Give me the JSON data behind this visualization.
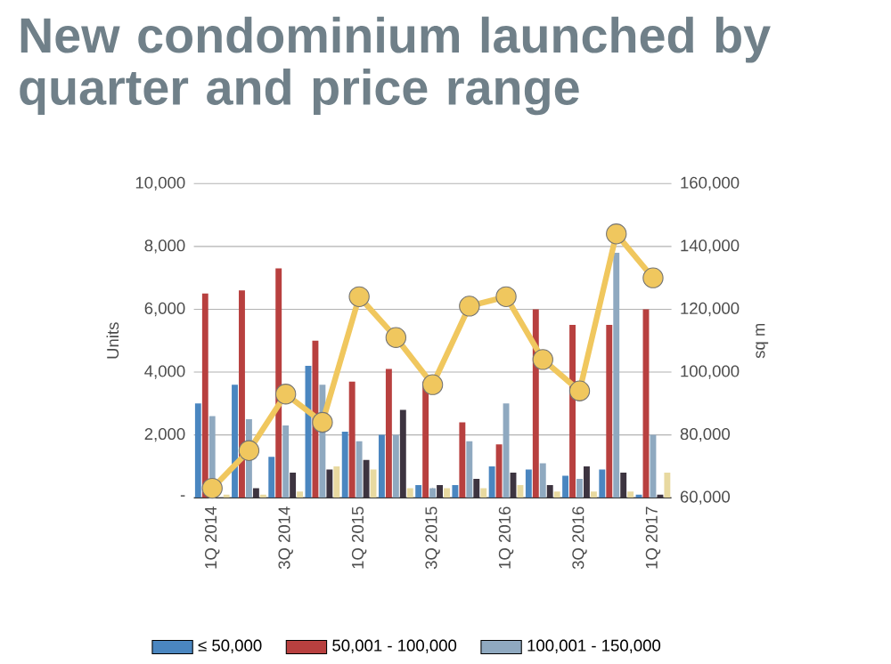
{
  "chart_data": {
    "type": "bar",
    "title": "New condominium launched by quarter and price range",
    "ylabel": "Units",
    "y2label": "sq m",
    "categories": [
      "1Q 2014",
      null,
      "3Q 2014",
      null,
      "1Q 2015",
      null,
      "3Q 2015",
      null,
      "1Q 2016",
      null,
      "3Q 2016",
      null,
      "1Q 2017"
    ],
    "series": [
      {
        "name": "≤ 50,000",
        "color": "#4a86c0",
        "values": [
          3000,
          3600,
          1300,
          4200,
          2100,
          2000,
          400,
          400,
          1000,
          900,
          700,
          900,
          100
        ]
      },
      {
        "name": "50,001 - 100,000",
        "color": "#b8403f",
        "values": [
          6500,
          6600,
          7300,
          5000,
          3700,
          4100,
          3700,
          2400,
          1700,
          6000,
          5500,
          5500,
          6000
        ]
      },
      {
        "name": "100,001 - 150,000",
        "color": "#8fa9c0",
        "values": [
          2600,
          2500,
          2300,
          3600,
          1800,
          2000,
          300,
          1800,
          3000,
          1100,
          600,
          7800,
          2000
        ]
      },
      {
        "color": "#3d3440",
        "values": [
          null,
          300,
          800,
          900,
          1200,
          2800,
          400,
          600,
          800,
          400,
          1000,
          800,
          100
        ]
      },
      {
        "color": "#e8d9a0",
        "values": [
          100,
          100,
          200,
          1000,
          900,
          300,
          300,
          300,
          400,
          200,
          200,
          200,
          800
        ]
      },
      {
        "type": "line",
        "axis": "y2",
        "color": "#f0c75e",
        "marker": "circle",
        "values": [
          63000,
          75000,
          93000,
          84000,
          124000,
          111000,
          96000,
          121000,
          124000,
          104000,
          94000,
          144000,
          130000
        ]
      }
    ],
    "ylim": [
      0,
      10000
    ],
    "yticks": [
      {
        "value": 0,
        "label": "-"
      },
      {
        "value": 2000,
        "label": "2,000"
      },
      {
        "value": 4000,
        "label": "4,000"
      },
      {
        "value": 6000,
        "label": "6,000"
      },
      {
        "value": 8000,
        "label": "8,000"
      },
      {
        "value": 10000,
        "label": "10,000"
      }
    ],
    "y2lim": [
      60000,
      160000
    ],
    "y2ticks": [
      {
        "value": 60000,
        "label": "60,000"
      },
      {
        "value": 80000,
        "label": "80,000"
      },
      {
        "value": 100000,
        "label": "100,000"
      },
      {
        "value": 120000,
        "label": "120,000"
      },
      {
        "value": 140000,
        "label": "140,000"
      },
      {
        "value": 160000,
        "label": "160,000"
      }
    ],
    "grid": "y",
    "legend": "bottom"
  }
}
